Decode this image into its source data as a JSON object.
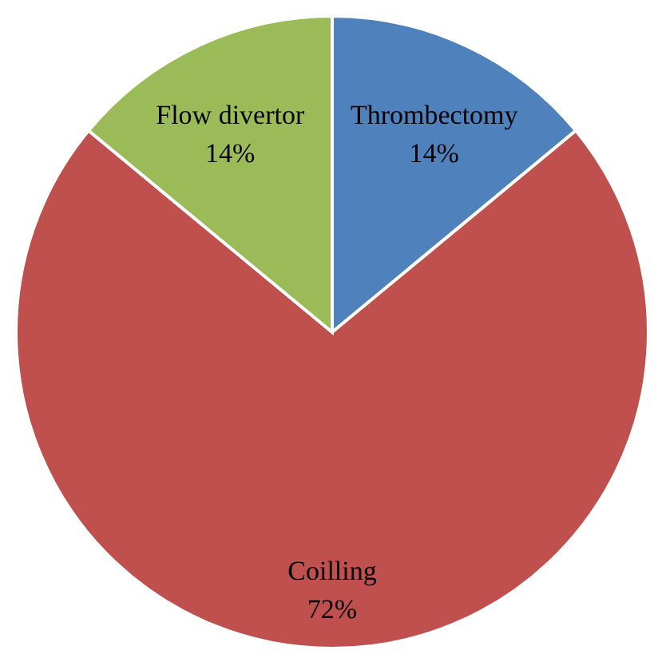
{
  "chart_data": {
    "type": "pie",
    "categories": [
      "Thrombectomy",
      "Coilling",
      "Flow divertor"
    ],
    "values": [
      14,
      72,
      14
    ],
    "colors": [
      "#4f81bd",
      "#c0504d",
      "#9bbb59"
    ],
    "value_labels": [
      "14%",
      "72%",
      "14%"
    ],
    "legend": false
  }
}
